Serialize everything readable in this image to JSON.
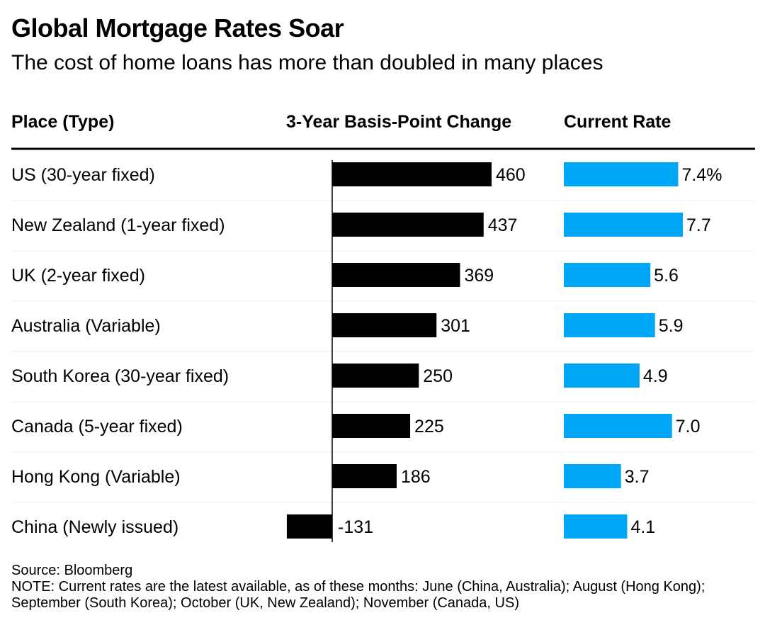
{
  "title": "Global Mortgage Rates Soar",
  "subtitle": "The cost of home loans has more than doubled in many places",
  "columns": {
    "place": "Place (Type)",
    "change": "3-Year Basis-Point Change",
    "rate": "Current Rate"
  },
  "source": "Source: Bloomberg",
  "note": "NOTE: Current rates are the latest available, as of these months: June (China, Australia); August (Hong Kong); September (South Korea); October (UK, New Zealand); November (Canada, US)",
  "colors": {
    "change_bar": "#000000",
    "rate_bar": "#00a6f6",
    "rule": "#000000",
    "row_divider": "#eeeeee"
  },
  "chart_data": {
    "type": "table",
    "categories": [
      "US (30-year fixed)",
      "New Zealand (1-year fixed)",
      "UK (2-year fixed)",
      "Australia (Variable)",
      "South Korea (30-year fixed)",
      "Canada (5-year fixed)",
      "Hong Kong (Variable)",
      "China (Newly issued)"
    ],
    "series": [
      {
        "values": [
          460,
          437,
          369,
          301,
          250,
          225,
          186,
          -131
        ],
        "labels": [
          "460",
          "437",
          "369",
          "301",
          "250",
          "225",
          "186",
          "-131"
        ]
      },
      {
        "values": [
          7.4,
          7.7,
          5.6,
          5.9,
          4.9,
          7.0,
          3.7,
          4.1
        ],
        "labels": [
          "7.4%",
          "7.7",
          "5.6",
          "5.9",
          "4.9",
          "7.0",
          "3.7",
          "4.1"
        ]
      }
    ]
  }
}
